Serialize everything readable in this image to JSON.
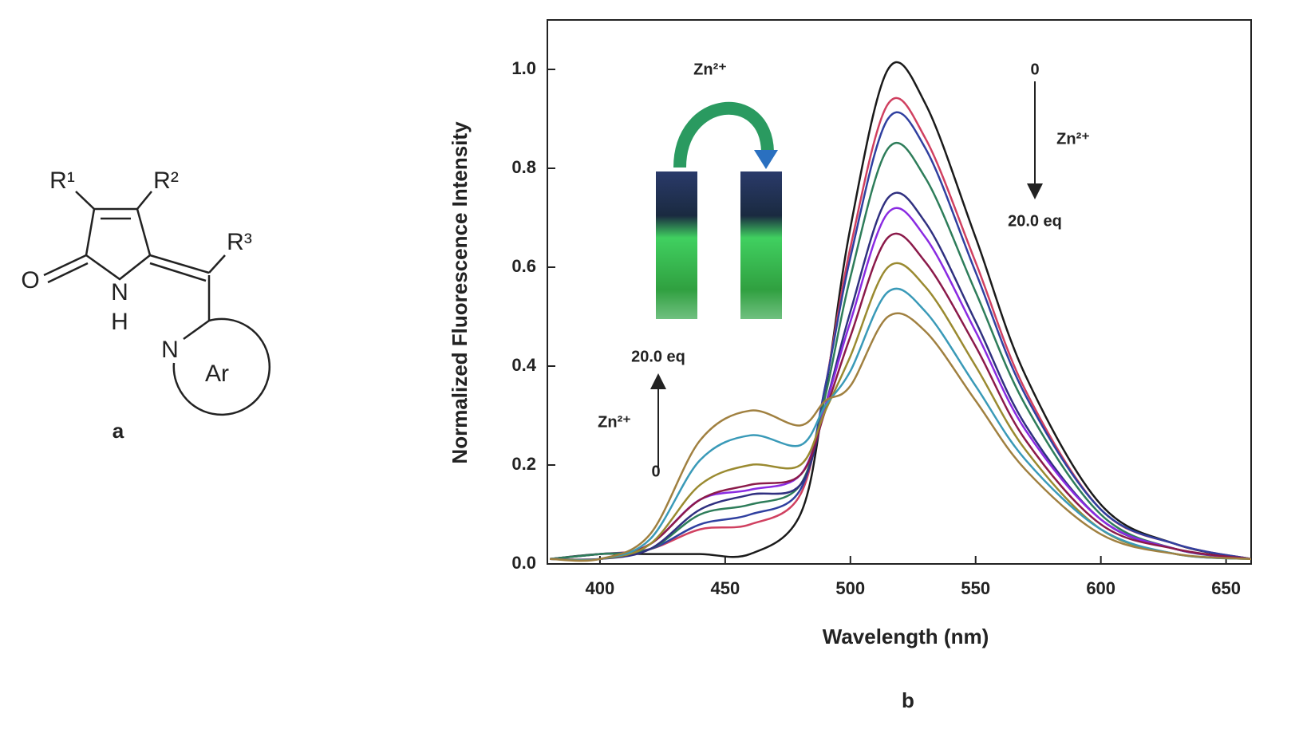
{
  "structure": {
    "labels": [
      "R¹",
      "R²",
      "R³",
      "O",
      "N",
      "H",
      "N",
      "Ar"
    ],
    "caption": "a"
  },
  "chart_data": {
    "type": "line",
    "caption": "b",
    "x_label": "Wavelength (nm)",
    "y_label": "Normalized Fluorescence Intensity",
    "x": [
      380,
      400,
      420,
      440,
      460,
      480,
      490,
      500,
      515,
      530,
      550,
      570,
      600,
      630,
      660
    ],
    "xlim": [
      379,
      660
    ],
    "ylim": [
      0,
      1.1
    ],
    "xticks": [
      400,
      450,
      500,
      550,
      600,
      650
    ],
    "yticks": [
      {
        "value": 0,
        "label": "0.0"
      },
      0.2,
      0.4,
      0.6,
      0.8,
      {
        "value": 1,
        "label": "1.0"
      }
    ],
    "annotations": [
      "Zn²⁺",
      "0",
      "Zn²⁺",
      "20.0 eq",
      "20.0 eq",
      "Zn²⁺",
      "0"
    ],
    "series": [
      {
        "color": "#1a1a1a",
        "values": [
          0.01,
          0.02,
          0.02,
          0.02,
          0.02,
          0.1,
          0.35,
          0.68,
          1.0,
          0.93,
          0.66,
          0.38,
          0.12,
          0.04,
          0.01
        ]
      },
      {
        "color": "#d04060",
        "values": [
          0.01,
          0.02,
          0.03,
          0.07,
          0.08,
          0.14,
          0.36,
          0.64,
          0.93,
          0.86,
          0.61,
          0.35,
          0.11,
          0.04,
          0.01
        ]
      },
      {
        "color": "#3040a0",
        "values": [
          0.01,
          0.02,
          0.03,
          0.08,
          0.1,
          0.15,
          0.36,
          0.62,
          0.9,
          0.84,
          0.59,
          0.34,
          0.11,
          0.04,
          0.01
        ]
      },
      {
        "color": "#2e7d5a",
        "values": [
          0.01,
          0.02,
          0.03,
          0.1,
          0.12,
          0.16,
          0.34,
          0.58,
          0.84,
          0.78,
          0.55,
          0.32,
          0.1,
          0.03,
          0.01
        ]
      },
      {
        "color": "#303080",
        "values": [
          0.01,
          0.01,
          0.03,
          0.11,
          0.14,
          0.16,
          0.32,
          0.51,
          0.74,
          0.69,
          0.49,
          0.28,
          0.09,
          0.03,
          0.01
        ]
      },
      {
        "color": "#8a2be2",
        "values": [
          0.01,
          0.01,
          0.04,
          0.13,
          0.15,
          0.18,
          0.32,
          0.49,
          0.71,
          0.66,
          0.47,
          0.27,
          0.09,
          0.03,
          0.01
        ]
      },
      {
        "color": "#8b1a4a",
        "values": [
          0.01,
          0.01,
          0.04,
          0.13,
          0.16,
          0.18,
          0.31,
          0.46,
          0.66,
          0.61,
          0.44,
          0.25,
          0.08,
          0.03,
          0.01
        ]
      },
      {
        "color": "#9a8a30",
        "values": [
          0.01,
          0.01,
          0.04,
          0.16,
          0.2,
          0.2,
          0.31,
          0.42,
          0.6,
          0.56,
          0.4,
          0.23,
          0.07,
          0.02,
          0.01
        ]
      },
      {
        "color": "#3a9ab8",
        "values": [
          0.01,
          0.01,
          0.05,
          0.21,
          0.26,
          0.24,
          0.32,
          0.39,
          0.55,
          0.51,
          0.36,
          0.21,
          0.07,
          0.02,
          0.01
        ]
      },
      {
        "color": "#a08040",
        "values": [
          0.01,
          0.01,
          0.06,
          0.25,
          0.31,
          0.28,
          0.33,
          0.36,
          0.5,
          0.47,
          0.33,
          0.19,
          0.06,
          0.02,
          0.01
        ]
      }
    ]
  }
}
